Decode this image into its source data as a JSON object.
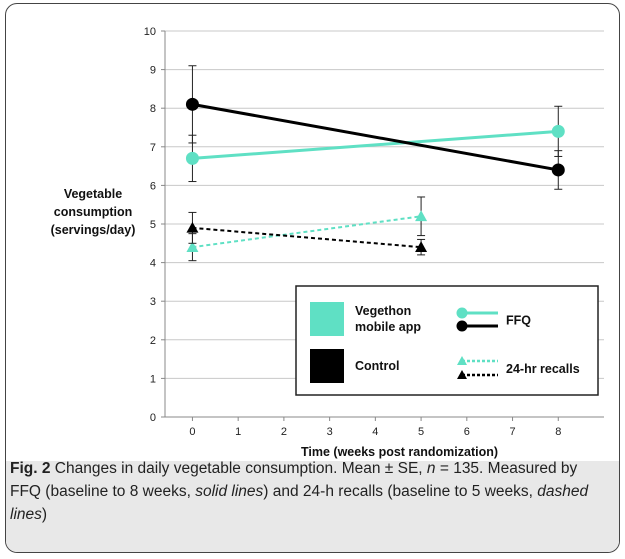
{
  "figure": {
    "label": "Fig. 2",
    "caption_parts": [
      {
        "text": " Changes in daily vegetable consumption. Mean ± SE, ",
        "style": "normal"
      },
      {
        "text": "n",
        "style": "italic"
      },
      {
        "text": " = 135. Measured by FFQ (baseline to 8 weeks, ",
        "style": "normal"
      },
      {
        "text": "solid lines",
        "style": "italic"
      },
      {
        "text": ") and 24-h recalls (baseline to 5 weeks, ",
        "style": "normal"
      },
      {
        "text": "dashed lines",
        "style": "italic"
      },
      {
        "text": ")",
        "style": "normal"
      }
    ]
  },
  "chart_data": {
    "type": "line",
    "xlabel": "Time (weeks post randomization)",
    "ylabel_lines": [
      "Vegetable",
      "consumption",
      "(servings/day)"
    ],
    "xlim": [
      -0.6,
      9
    ],
    "ylim": [
      0,
      10
    ],
    "x_ticks": [
      0,
      1,
      2,
      3,
      4,
      5,
      6,
      7,
      8
    ],
    "y_ticks": [
      0,
      1,
      2,
      3,
      4,
      5,
      6,
      7,
      8,
      9,
      10
    ],
    "grid": "horizontal",
    "series": [
      {
        "group": "Vegethon mobile app",
        "method": "FFQ",
        "color": "#5fe0c4",
        "dash": "solid",
        "marker": "circle",
        "points": [
          {
            "x": 0,
            "y": 6.7,
            "se": 0.6
          },
          {
            "x": 8,
            "y": 7.4,
            "se": 0.65
          }
        ]
      },
      {
        "group": "Control",
        "method": "FFQ",
        "color": "#000000",
        "dash": "solid",
        "marker": "circle",
        "points": [
          {
            "x": 0,
            "y": 8.1,
            "se": 1.0
          },
          {
            "x": 8,
            "y": 6.4,
            "se": 0.5
          }
        ]
      },
      {
        "group": "Vegethon mobile app",
        "method": "24-hr recalls",
        "color": "#5fe0c4",
        "dash": "dashed",
        "marker": "triangle",
        "points": [
          {
            "x": 0,
            "y": 4.4,
            "se": 0.35
          },
          {
            "x": 5,
            "y": 5.2,
            "se": 0.5
          }
        ]
      },
      {
        "group": "Control",
        "method": "24-hr recalls",
        "color": "#000000",
        "dash": "dashed",
        "marker": "triangle",
        "points": [
          {
            "x": 0,
            "y": 4.9,
            "se": 0.4
          },
          {
            "x": 5,
            "y": 4.4,
            "se": 0.2
          }
        ]
      }
    ],
    "legend": {
      "placement": "bottom-right",
      "groups": [
        {
          "label_lines": [
            "Vegethon",
            "mobile app"
          ],
          "color": "#5fe0c4"
        },
        {
          "label_lines": [
            "Control"
          ],
          "color": "#000000"
        }
      ],
      "methods": [
        {
          "label": "FFQ",
          "dash": "solid",
          "marker": "circle"
        },
        {
          "label": "24-hr recalls",
          "dash": "dashed",
          "marker": "triangle"
        }
      ]
    }
  }
}
